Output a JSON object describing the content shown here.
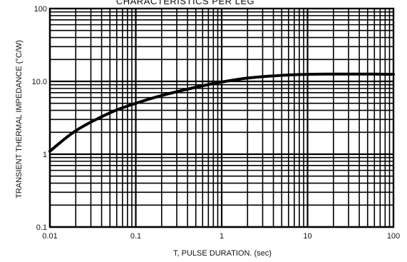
{
  "chart_data": {
    "type": "line",
    "title": "CHARACTERISTICS PER LEG",
    "xlabel": "T, PULSE DURATION. (sec)",
    "ylabel": "TRANSIENT THERMAL IMPEDANCE (°C/W)",
    "x_scale": "log",
    "y_scale": "log",
    "xlim": [
      0.01,
      100
    ],
    "ylim": [
      0.1,
      100
    ],
    "x_tick_labels": [
      "0.01",
      "0.1",
      "1",
      "10",
      "100"
    ],
    "y_tick_labels": [
      "0.1",
      "1",
      "10.0",
      "100"
    ],
    "grid": true,
    "series": [
      {
        "x": [
          0.01,
          0.02,
          0.05,
          0.1,
          0.2,
          0.5,
          1,
          2,
          5,
          10,
          20,
          50,
          100
        ],
        "y": [
          1.1,
          2.1,
          3.7,
          5.0,
          6.4,
          8.3,
          9.8,
          11.1,
          12.1,
          12.5,
          12.6,
          12.6,
          12.5
        ]
      }
    ]
  }
}
